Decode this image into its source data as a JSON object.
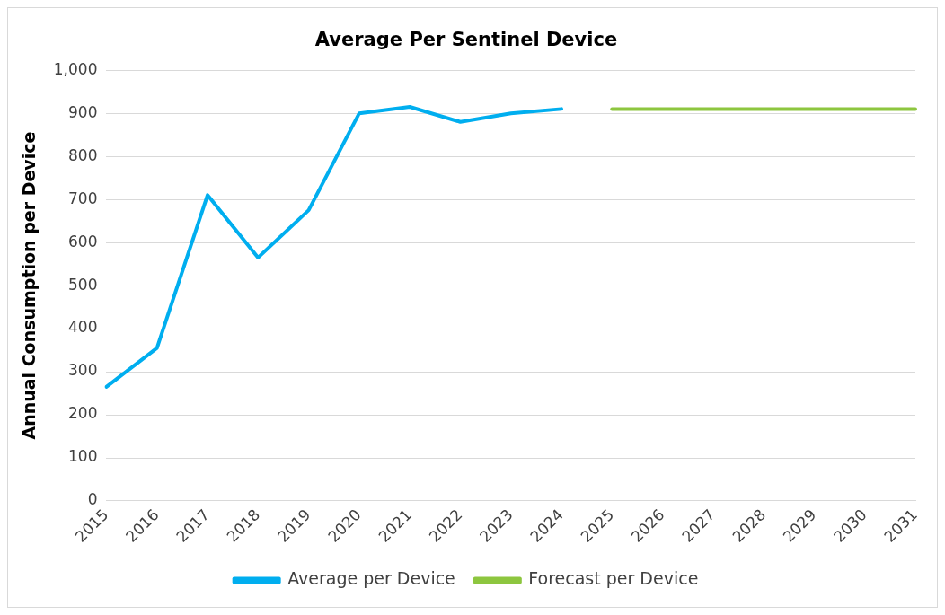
{
  "chart_data": {
    "type": "line",
    "title": "Average Per Sentinel Device",
    "ylabel": "Annual Consumption per Device",
    "categories": [
      "2015",
      "2016",
      "2017",
      "2018",
      "2019",
      "2020",
      "2021",
      "2022",
      "2023",
      "2024",
      "2025",
      "2026",
      "2027",
      "2028",
      "2029",
      "2030",
      "2031"
    ],
    "series": [
      {
        "name": "Average per Device",
        "color": "#00aeef",
        "values": [
          265,
          355,
          710,
          565,
          675,
          900,
          915,
          880,
          900,
          910,
          null,
          null,
          null,
          null,
          null,
          null,
          null
        ]
      },
      {
        "name": "Forecast per Device",
        "color": "#8dc63f",
        "values": [
          null,
          null,
          null,
          null,
          null,
          null,
          null,
          null,
          null,
          null,
          910,
          910,
          910,
          910,
          910,
          910,
          910
        ]
      }
    ],
    "ylim": [
      0,
      1000
    ],
    "yticks": [
      0,
      100,
      200,
      300,
      400,
      500,
      600,
      700,
      800,
      900,
      {
        "value": 1000,
        "label": "1,000"
      }
    ],
    "grid": "y",
    "legend": "bottom",
    "marker": "none",
    "line_style": "solid"
  }
}
